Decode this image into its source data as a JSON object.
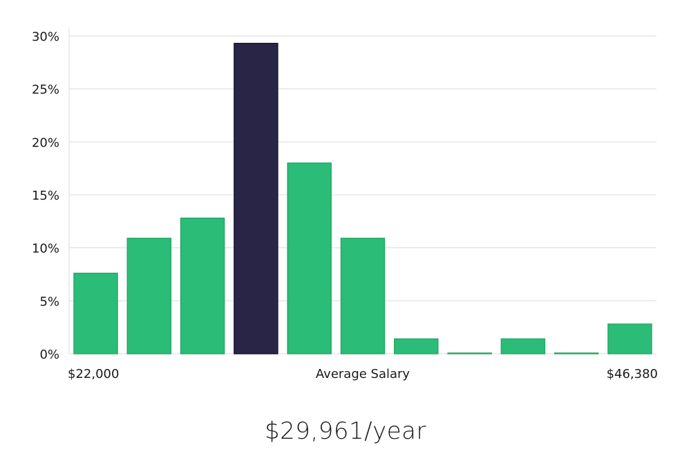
{
  "chart_data": {
    "type": "bar",
    "title": "",
    "xlabel": "Average Salary",
    "ylabel": "",
    "x_min_label": "$22,000",
    "x_max_label": "$46,380",
    "ylim": [
      0,
      30
    ],
    "yticks": [
      "0%",
      "5%",
      "10%",
      "15%",
      "20%",
      "25%",
      "30%"
    ],
    "ytick_values": [
      0,
      5,
      10,
      15,
      20,
      25,
      30
    ],
    "values": [
      7.6,
      10.9,
      12.8,
      29.3,
      18.0,
      10.9,
      1.4,
      0.05,
      1.4,
      0.05,
      2.8
    ],
    "highlight_index": 3,
    "grid": true
  },
  "colors": {
    "bar": "#2bbd77",
    "bar_border": "#24a866",
    "highlight": "#282547",
    "highlight_border": "#1a1836"
  },
  "summary": {
    "salary_text": "$29,961/year"
  }
}
